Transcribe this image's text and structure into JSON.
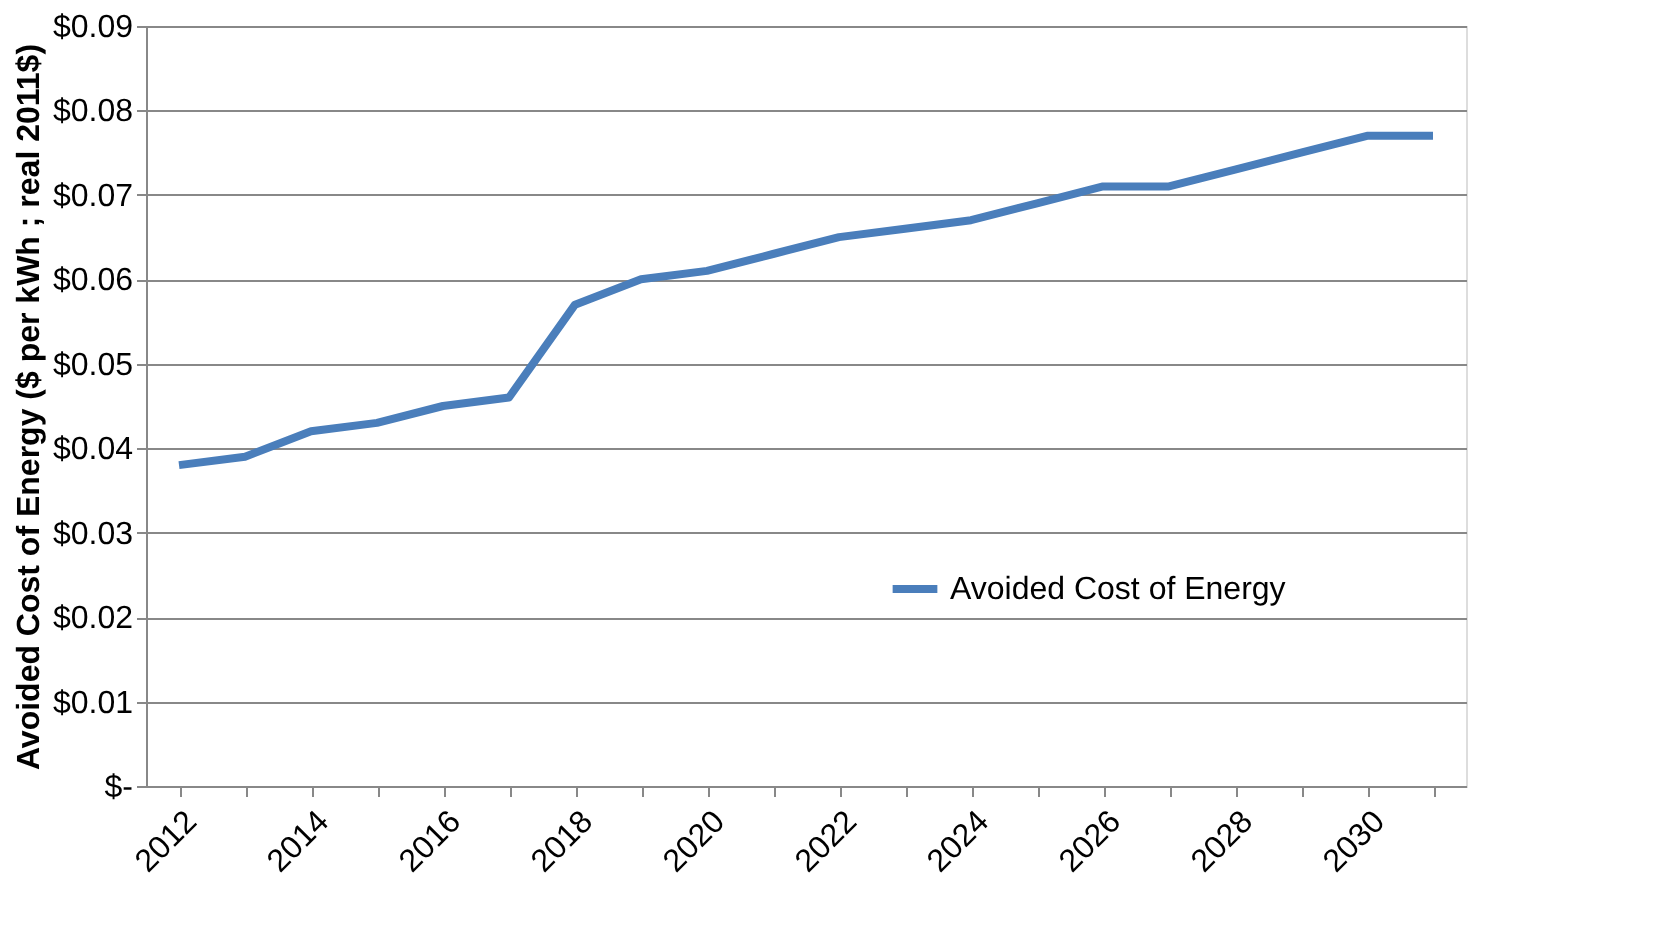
{
  "chart_data": {
    "type": "line",
    "ylabel": "Avoided Cost of Energy ($ per kWh ; real 2011$)",
    "categories": [
      "2012",
      null,
      "2014",
      null,
      "2016",
      null,
      "2018",
      null,
      "2020",
      null,
      "2022",
      null,
      "2024",
      null,
      "2026",
      null,
      "2028",
      null,
      "2030",
      null
    ],
    "series": [
      {
        "name": "Avoided Cost of Energy",
        "color": "#4a7ebb",
        "values": [
          0.038,
          0.039,
          0.042,
          0.043,
          0.045,
          0.046,
          0.057,
          0.06,
          0.061,
          0.063,
          0.065,
          0.066,
          0.067,
          0.069,
          0.071,
          0.071,
          0.073,
          0.075,
          0.077,
          0.077
        ]
      }
    ],
    "ylim": [
      0,
      0.09
    ],
    "yticks": [
      {
        "value": 0,
        "label": "$-"
      },
      {
        "value": 0.01,
        "label": "$0.01"
      },
      {
        "value": 0.02,
        "label": "$0.02"
      },
      {
        "value": 0.03,
        "label": "$0.03"
      },
      {
        "value": 0.04,
        "label": "$0.04"
      },
      {
        "value": 0.05,
        "label": "$0.05"
      },
      {
        "value": 0.06,
        "label": "$0.06"
      },
      {
        "value": 0.07,
        "label": "$0.07"
      },
      {
        "value": 0.08,
        "label": "$0.08"
      },
      {
        "value": 0.09,
        "label": "$0.09"
      }
    ],
    "grid": "y",
    "legend": "bottom right",
    "marker": "none",
    "line_style": "solid"
  }
}
